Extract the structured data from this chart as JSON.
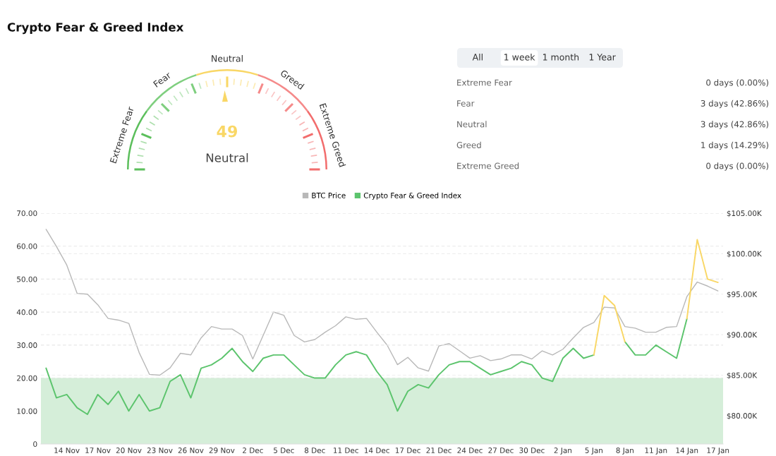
{
  "chart_data": [
    {
      "type": "donut",
      "title": "Crypto Fear & Greed Index",
      "categories": [
        "Extreme Fear",
        "Fear",
        "Neutral",
        "Greed",
        "Extreme Greed"
      ],
      "values": [
        20,
        20,
        20,
        20,
        20
      ],
      "colors": [
        "#5cbf5c",
        "#7fcf7f",
        "#f9d766",
        "#f58a8a",
        "#f26d6d"
      ],
      "annotations": [
        "49",
        "Neutral"
      ]
    },
    {
      "type": "other",
      "annotations": [
        "All",
        "1 week",
        "1 month",
        "1 Year"
      ],
      "categories": [
        "Extreme Fear",
        "Fear",
        "Neutral",
        "Greed",
        "Extreme Greed"
      ],
      "value_labels": [
        "0 days (0.00%)",
        "3 days (42.86%)",
        "3 days (42.86%)",
        "1 days (14.29%)",
        "0 days (0.00%)"
      ]
    },
    {
      "type": "line",
      "categories": [
        null,
        null,
        "14 Nov",
        null,
        null,
        "17 Nov",
        null,
        null,
        "20 Nov",
        null,
        null,
        "23 Nov",
        null,
        null,
        "26 Nov",
        null,
        null,
        "29 Nov",
        null,
        null,
        "2 Dec",
        null,
        null,
        "5 Dec",
        null,
        null,
        "8 Dec",
        null,
        null,
        "11 Dec",
        null,
        null,
        "14 Dec",
        null,
        null,
        "17 Dec",
        null,
        null,
        "21 Dec",
        null,
        null,
        "24 Dec",
        null,
        null,
        "27 Dec",
        null,
        null,
        "30 Dec",
        null,
        null,
        "2 Jan",
        null,
        null,
        "5 Jan",
        null,
        null,
        "8 Jan",
        null,
        null,
        "11 Jan",
        null,
        null,
        "14 Jan",
        null,
        null,
        "17 Jan"
      ],
      "series": [
        {
          "name": "BTC Price",
          "color": "#b8b8b8",
          "axis": "y2",
          "values": [
            103000,
            100900,
            98600,
            95100,
            95000,
            93700,
            92000,
            91800,
            91400,
            87800,
            85100,
            85000,
            85900,
            87700,
            87500,
            89600,
            91000,
            90700,
            90700,
            89900,
            87000,
            89900,
            92800,
            92400,
            89900,
            89100,
            89400,
            90300,
            91100,
            92200,
            91900,
            92000,
            90300,
            88700,
            86300,
            87200,
            85900,
            85500,
            88600,
            88900,
            88000,
            87100,
            87400,
            86800,
            87000,
            87500,
            87500,
            87000,
            88000,
            87500,
            88200,
            89600,
            90900,
            91500,
            93400,
            93300,
            91000,
            90800,
            90300,
            90300,
            90900,
            91000,
            94700,
            96500,
            96000,
            95400
          ]
        },
        {
          "name": "Crypto Fear & Greed Index",
          "color": "#5cc46d",
          "values": [
            23,
            14,
            15,
            11,
            9,
            15,
            12,
            16,
            10,
            15,
            10,
            11,
            19,
            21,
            14,
            23,
            24,
            26,
            29,
            25,
            22,
            26,
            27,
            27,
            24,
            21,
            20,
            20,
            24,
            27,
            28,
            27,
            22,
            18,
            10,
            16,
            18,
            17,
            21,
            24,
            25,
            25,
            23,
            21,
            22,
            23,
            25,
            24,
            20,
            19,
            26,
            29,
            26,
            27,
            null,
            null,
            31,
            27,
            27,
            30,
            28,
            26,
            38,
            null,
            null,
            null
          ]
        },
        {
          "color": "#f9d766",
          "values": [
            null,
            null,
            null,
            null,
            null,
            null,
            null,
            null,
            null,
            null,
            null,
            null,
            null,
            null,
            null,
            null,
            null,
            null,
            null,
            null,
            null,
            null,
            null,
            null,
            null,
            null,
            null,
            null,
            null,
            null,
            null,
            null,
            null,
            null,
            null,
            null,
            null,
            null,
            null,
            null,
            null,
            null,
            null,
            null,
            null,
            null,
            null,
            null,
            null,
            null,
            null,
            null,
            null,
            27,
            45,
            42,
            31,
            null,
            null,
            null,
            null,
            null,
            38,
            62,
            50,
            49
          ]
        }
      ],
      "ylim": [
        0,
        70
      ],
      "yticks": [
        {
          "value": 0,
          "label": "0"
        },
        {
          "value": 10,
          "label": "10.00"
        },
        {
          "value": 20,
          "label": "20.00"
        },
        {
          "value": 30,
          "label": "30.00"
        },
        {
          "value": 40,
          "label": "40.00"
        },
        {
          "value": 50,
          "label": "50.00"
        },
        {
          "value": 60,
          "label": "60.00"
        },
        {
          "value": 70,
          "label": "70.00"
        }
      ],
      "y2lim": [
        76500,
        105000
      ],
      "y2ticks": [
        {
          "value": 80000,
          "label": "$80.00K"
        },
        {
          "value": 85000,
          "label": "$85.00K"
        },
        {
          "value": 90000,
          "label": "$90.00K"
        },
        {
          "value": 95000,
          "label": "$95.00K"
        },
        {
          "value": 100000,
          "label": "$100.00K"
        },
        {
          "value": 105000,
          "label": "$105.00K"
        }
      ],
      "bands": [
        {
          "axis": "y",
          "from": 0,
          "to": 20,
          "color": "#d5eed9"
        }
      ],
      "grid": "y",
      "legend": "top"
    }
  ]
}
